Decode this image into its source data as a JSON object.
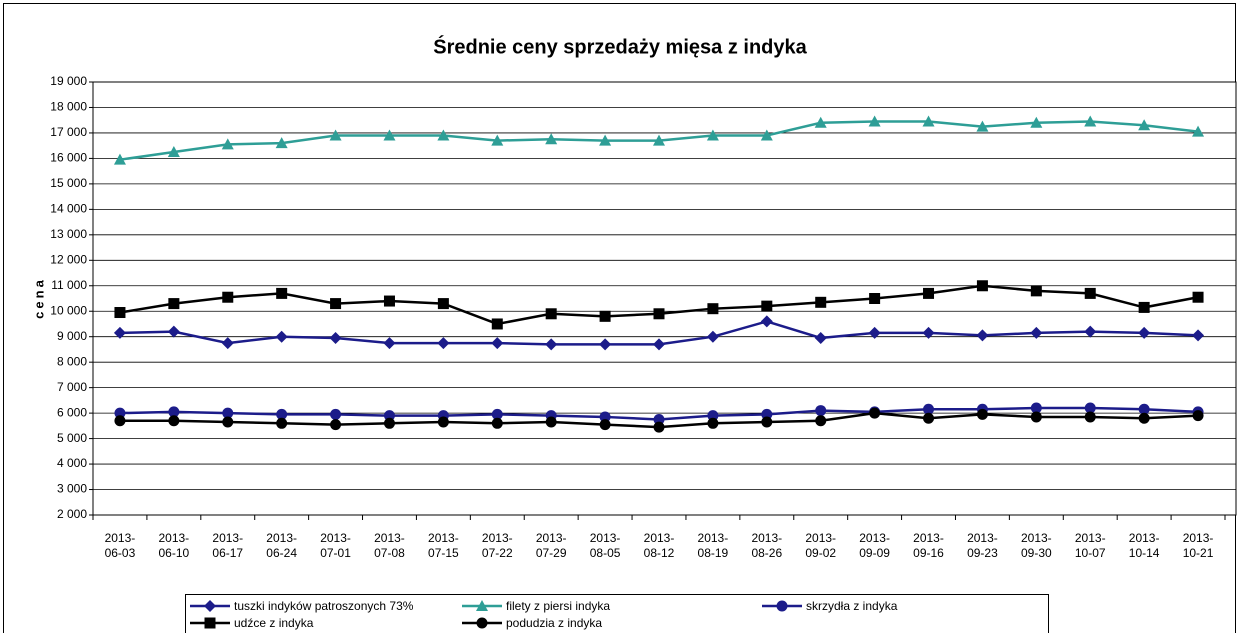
{
  "chart_data": {
    "type": "line",
    "title": "Średnie ceny sprzedaży mięsa z indyka",
    "y_label": "cena",
    "categories": [
      "2013-06-03",
      "2013-06-10",
      "2013-06-17",
      "2013-06-24",
      "2013-07-01",
      "2013-07-08",
      "2013-07-15",
      "2013-07-22",
      "2013-07-29",
      "2013-08-05",
      "2013-08-12",
      "2013-08-19",
      "2013-08-26",
      "2013-09-02",
      "2013-09-09",
      "2013-09-16",
      "2013-09-23",
      "2013-09-30",
      "2013-10-07",
      "2013-10-14",
      "2013-10-21"
    ],
    "ylim": [
      2000,
      19000
    ],
    "yticks": [
      {
        "value": 2000,
        "label": "2 000"
      },
      {
        "value": 3000,
        "label": "3 000"
      },
      {
        "value": 4000,
        "label": "4 000"
      },
      {
        "value": 5000,
        "label": "5 000"
      },
      {
        "value": 6000,
        "label": "6 000"
      },
      {
        "value": 7000,
        "label": "7 000"
      },
      {
        "value": 8000,
        "label": "8 000"
      },
      {
        "value": 9000,
        "label": "9 000"
      },
      {
        "value": 10000,
        "label": "10 000"
      },
      {
        "value": 11000,
        "label": "11 000"
      },
      {
        "value": 12000,
        "label": "12 000"
      },
      {
        "value": 13000,
        "label": "13 000"
      },
      {
        "value": 14000,
        "label": "14 000"
      },
      {
        "value": 15000,
        "label": "15 000"
      },
      {
        "value": 16000,
        "label": "16 000"
      },
      {
        "value": 17000,
        "label": "17 000"
      },
      {
        "value": 18000,
        "label": "18 000"
      },
      {
        "value": 19000,
        "label": "19 000"
      }
    ],
    "grid": true,
    "legend": "bottom",
    "series": [
      {
        "name": "tuszki indyków patroszonych 73%",
        "color": "#1c1c8a",
        "marker": "diamond",
        "values": [
          9150,
          9200,
          8750,
          9000,
          8950,
          8750,
          8750,
          8750,
          8700,
          8700,
          8700,
          9000,
          9600,
          8950,
          9150,
          9150,
          9050,
          9150,
          9200,
          9150,
          9050
        ]
      },
      {
        "name": "filety z piersi indyka",
        "color": "#2e9e96",
        "marker": "triangle",
        "values": [
          15950,
          16250,
          16550,
          16600,
          16900,
          16900,
          16900,
          16700,
          16750,
          16700,
          16700,
          16900,
          16900,
          17400,
          17450,
          17450,
          17250,
          17400,
          17450,
          17300,
          17050
        ]
      },
      {
        "name": "skrzydła z indyka",
        "color": "#1c1c8a",
        "marker": "circle",
        "values": [
          6000,
          6050,
          6000,
          5950,
          5950,
          5900,
          5900,
          5950,
          5900,
          5850,
          5750,
          5900,
          5950,
          6100,
          6050,
          6150,
          6150,
          6200,
          6200,
          6150,
          6050
        ]
      },
      {
        "name": "udźce z indyka",
        "color": "#000000",
        "marker": "square",
        "values": [
          9950,
          10300,
          10550,
          10700,
          10300,
          10400,
          10300,
          9500,
          9900,
          9800,
          9900,
          10100,
          10200,
          10350,
          10500,
          10700,
          11000,
          10800,
          10700,
          10150,
          10550
        ]
      },
      {
        "name": "podudzia z indyka",
        "color": "#000000",
        "marker": "circle",
        "values": [
          5700,
          5700,
          5650,
          5600,
          5550,
          5600,
          5650,
          5600,
          5650,
          5550,
          5450,
          5600,
          5650,
          5700,
          6000,
          5800,
          5950,
          5850,
          5850,
          5800,
          5900
        ]
      }
    ]
  }
}
